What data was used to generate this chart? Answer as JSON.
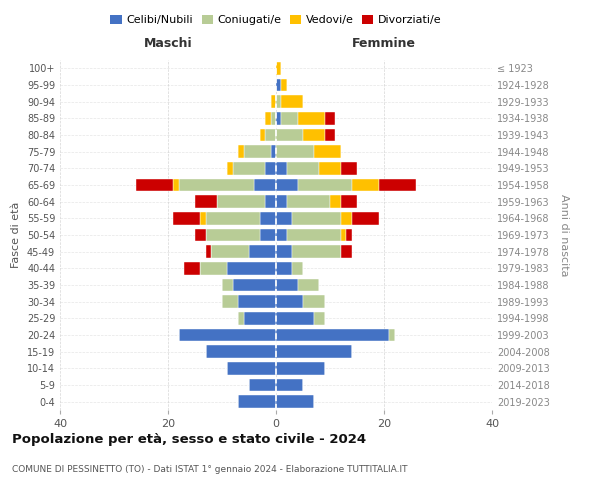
{
  "age_groups": [
    "0-4",
    "5-9",
    "10-14",
    "15-19",
    "20-24",
    "25-29",
    "30-34",
    "35-39",
    "40-44",
    "45-49",
    "50-54",
    "55-59",
    "60-64",
    "65-69",
    "70-74",
    "75-79",
    "80-84",
    "85-89",
    "90-94",
    "95-99",
    "100+"
  ],
  "birth_years": [
    "2019-2023",
    "2014-2018",
    "2009-2013",
    "2004-2008",
    "1999-2003",
    "1994-1998",
    "1989-1993",
    "1984-1988",
    "1979-1983",
    "1974-1978",
    "1969-1973",
    "1964-1968",
    "1959-1963",
    "1954-1958",
    "1949-1953",
    "1944-1948",
    "1939-1943",
    "1934-1938",
    "1929-1933",
    "1924-1928",
    "≤ 1923"
  ],
  "maschi": {
    "celibi": [
      7,
      5,
      9,
      13,
      18,
      6,
      7,
      8,
      9,
      5,
      3,
      3,
      2,
      4,
      2,
      1,
      0,
      0,
      0,
      0,
      0
    ],
    "coniugati": [
      0,
      0,
      0,
      0,
      0,
      1,
      3,
      2,
      5,
      7,
      10,
      10,
      9,
      14,
      6,
      5,
      2,
      1,
      0,
      0,
      0
    ],
    "vedovi": [
      0,
      0,
      0,
      0,
      0,
      0,
      0,
      0,
      0,
      0,
      0,
      1,
      0,
      1,
      1,
      1,
      1,
      1,
      1,
      0,
      0
    ],
    "divorziati": [
      0,
      0,
      0,
      0,
      0,
      0,
      0,
      0,
      3,
      1,
      2,
      5,
      4,
      7,
      0,
      0,
      0,
      0,
      0,
      0,
      0
    ]
  },
  "femmine": {
    "nubili": [
      7,
      5,
      9,
      14,
      21,
      7,
      5,
      4,
      3,
      3,
      2,
      3,
      2,
      4,
      2,
      0,
      0,
      1,
      0,
      1,
      0
    ],
    "coniugate": [
      0,
      0,
      0,
      0,
      1,
      2,
      4,
      4,
      2,
      9,
      10,
      9,
      8,
      10,
      6,
      7,
      5,
      3,
      1,
      0,
      0
    ],
    "vedove": [
      0,
      0,
      0,
      0,
      0,
      0,
      0,
      0,
      0,
      0,
      1,
      2,
      2,
      5,
      4,
      5,
      4,
      5,
      4,
      1,
      1
    ],
    "divorziate": [
      0,
      0,
      0,
      0,
      0,
      0,
      0,
      0,
      0,
      2,
      1,
      5,
      3,
      7,
      3,
      0,
      2,
      2,
      0,
      0,
      0
    ]
  },
  "colors": {
    "celibi": "#4472c4",
    "coniugati": "#b8cc96",
    "vedovi": "#ffc000",
    "divorziati": "#cc0000"
  },
  "title": "Popolazione per età, sesso e stato civile - 2024",
  "subtitle": "COMUNE DI PESSINETTO (TO) - Dati ISTAT 1° gennaio 2024 - Elaborazione TUTTITALIA.IT",
  "ylabel_left": "Fasce di età",
  "ylabel_right": "Anni di nascita",
  "xlabel_left": "Maschi",
  "xlabel_right": "Femmine",
  "xlim": 40,
  "bg_color": "#ffffff",
  "grid_color": "#cccccc"
}
